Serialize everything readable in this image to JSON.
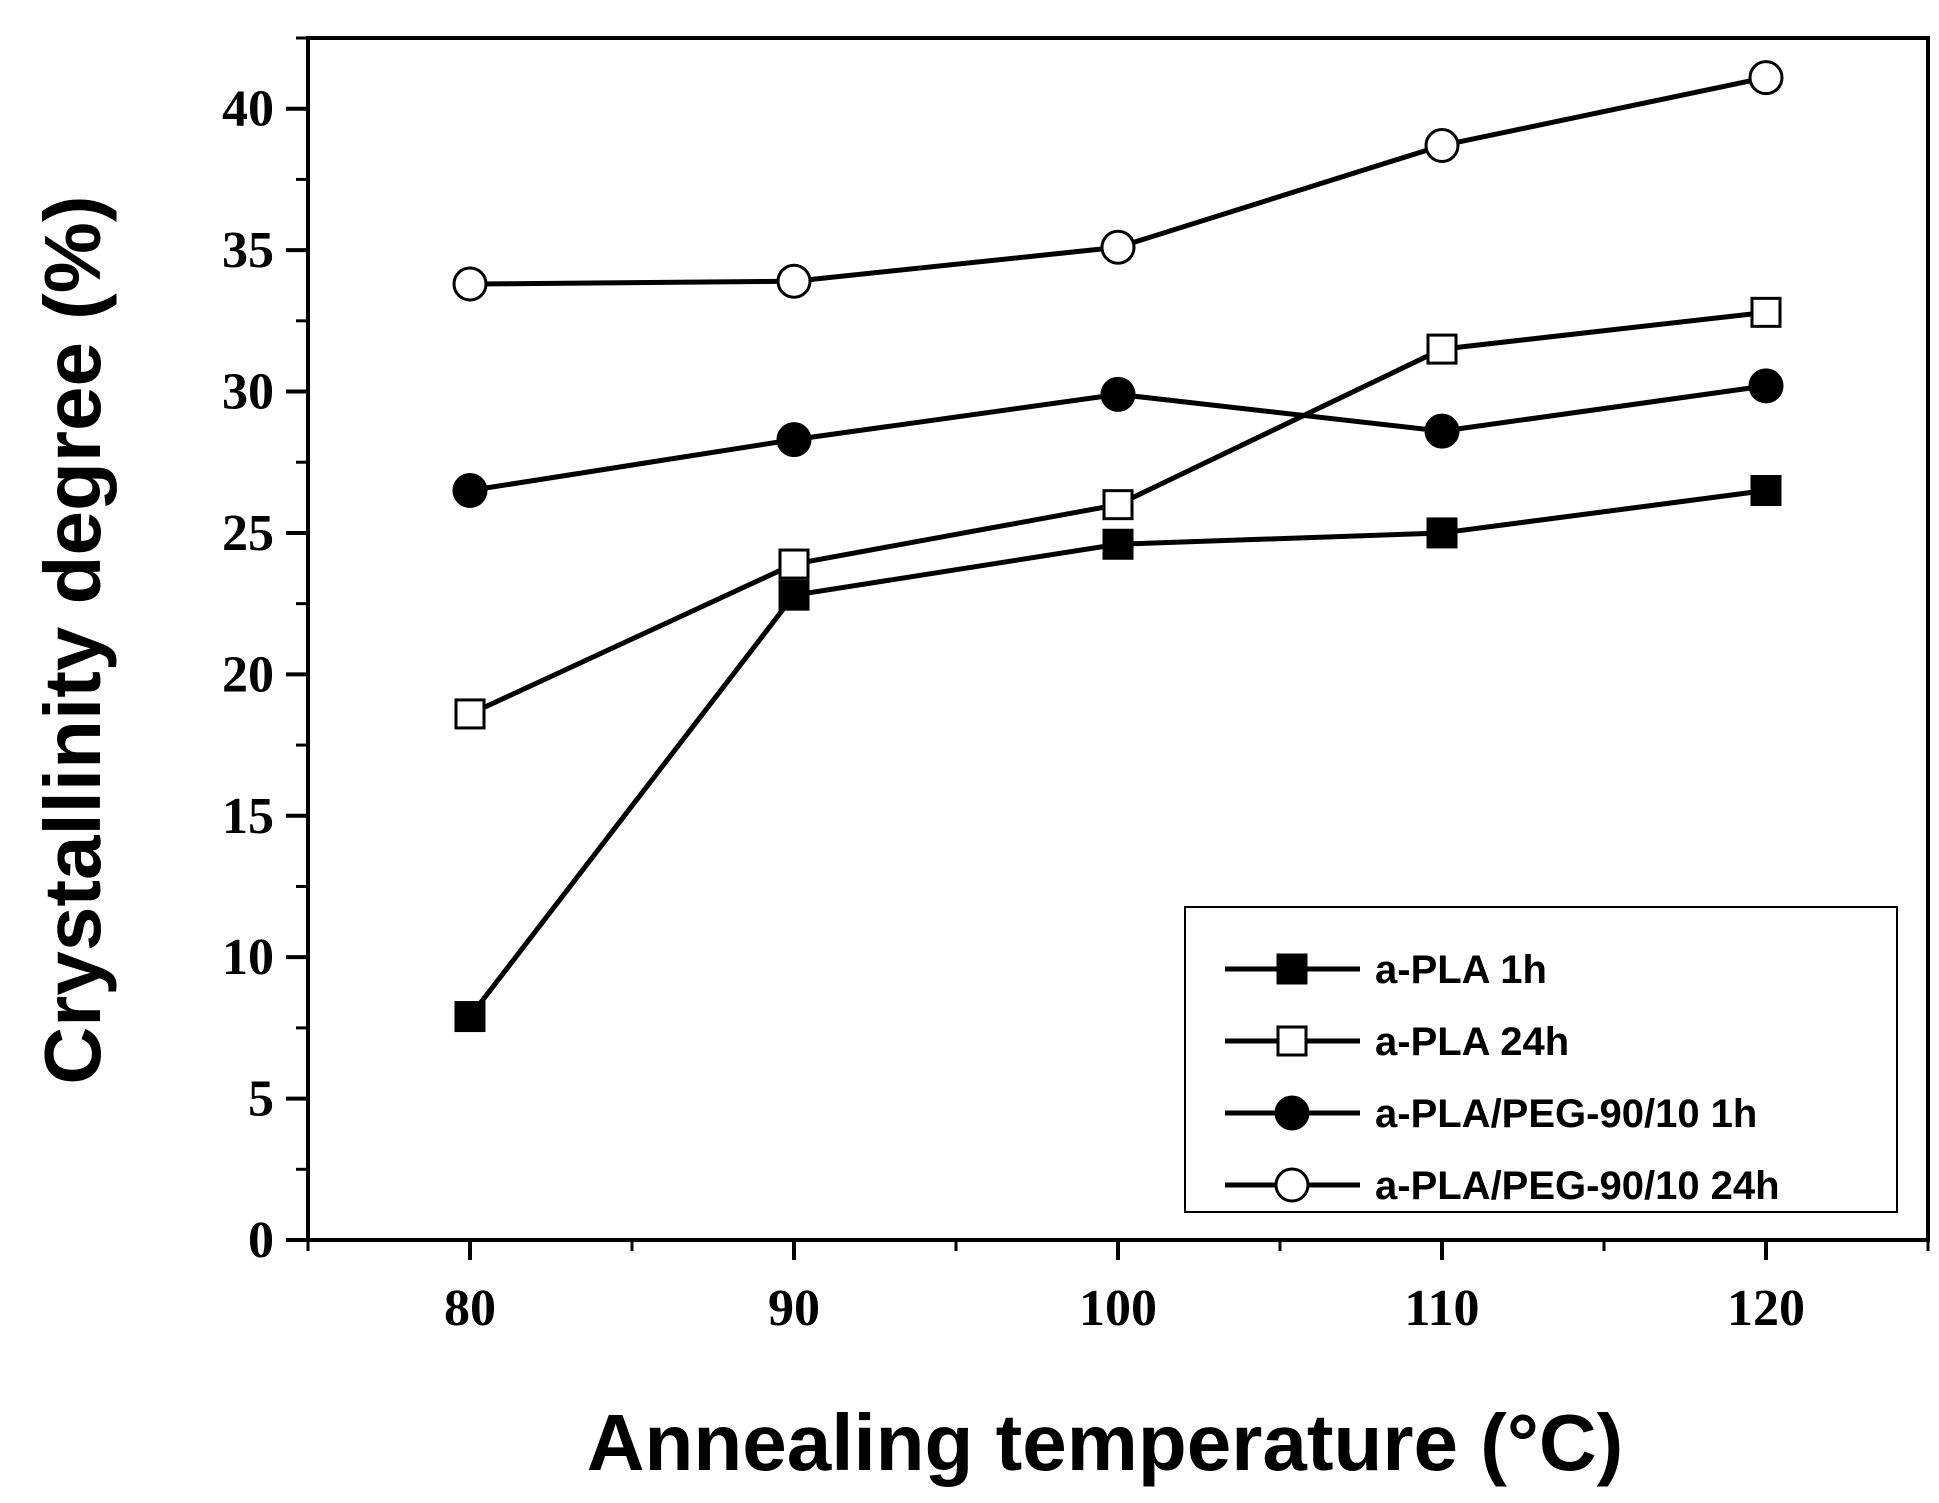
{
  "chart_data": {
    "type": "line",
    "title": "",
    "xlabel": "Annealing temperature (°C)",
    "ylabel": "Crystallinity degree (%)",
    "xlim": [
      75,
      125
    ],
    "ylim": [
      0,
      42.5
    ],
    "x_ticks": [
      80,
      90,
      100,
      110,
      120
    ],
    "y_ticks": [
      0,
      5,
      10,
      15,
      20,
      25,
      30,
      35,
      40
    ],
    "x_minor_ticks": [
      75,
      85,
      95,
      105,
      115,
      125
    ],
    "y_minor_ticks": [
      2.5,
      7.5,
      12.5,
      17.5,
      22.5,
      27.5,
      32.5,
      37.5,
      42.5
    ],
    "grid": false,
    "legend_position": "bottom-right",
    "x": [
      80,
      90,
      100,
      110,
      120
    ],
    "series": [
      {
        "name": "a-PLA 1h",
        "marker": "filled-square",
        "values": [
          7.9,
          22.8,
          24.6,
          25.0,
          26.5
        ]
      },
      {
        "name": "a-PLA 24h",
        "marker": "open-square",
        "values": [
          18.6,
          23.9,
          26.0,
          31.5,
          32.8
        ]
      },
      {
        "name": "a-PLA/PEG-90/10 1h",
        "marker": "filled-circle",
        "values": [
          26.5,
          28.3,
          29.9,
          28.6,
          30.2
        ]
      },
      {
        "name": "a-PLA/PEG-90/10 24h",
        "marker": "open-circle",
        "values": [
          33.8,
          33.9,
          35.1,
          38.7,
          41.1
        ]
      }
    ],
    "colors": {
      "line": "#000000",
      "marker_fill_open": "#ffffff",
      "marker_fill_solid": "#000000"
    }
  }
}
